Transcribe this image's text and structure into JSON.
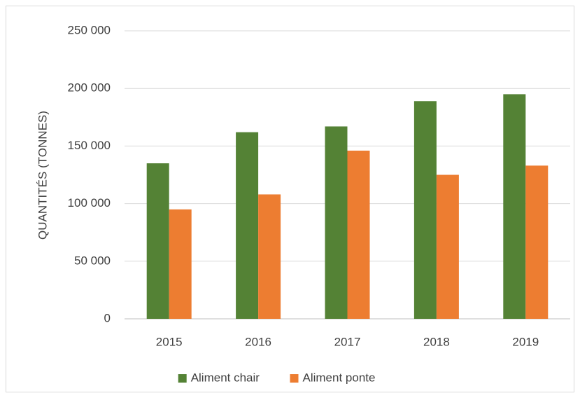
{
  "chart_data": {
    "type": "bar",
    "y_label": "QUANTITÉS (TONNES)",
    "categories": [
      "2015",
      "2016",
      "2017",
      "2018",
      "2019"
    ],
    "series": [
      {
        "name": "Aliment chair",
        "color": "#548235",
        "values": [
          135000,
          162000,
          167000,
          189000,
          195000
        ]
      },
      {
        "name": "Aliment ponte",
        "color": "#ed7d31",
        "values": [
          95000,
          108000,
          146000,
          125000,
          133000
        ]
      }
    ],
    "ylim": [
      0,
      250000
    ],
    "yticks": [
      0,
      {
        "value": 50000,
        "label": "50 000"
      },
      {
        "value": 100000,
        "label": "100 000"
      },
      {
        "value": 150000,
        "label": "150 000"
      },
      {
        "value": 200000,
        "label": "200 000"
      },
      {
        "value": 250000,
        "label": "250 000"
      }
    ],
    "grid": true,
    "legend": "bottom"
  }
}
